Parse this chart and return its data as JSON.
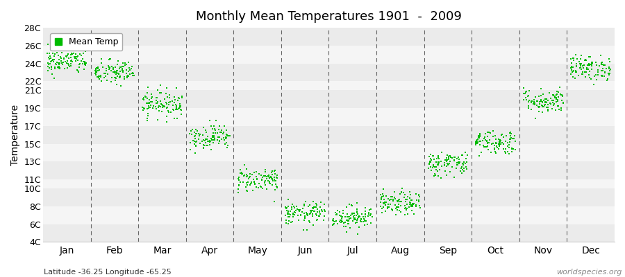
{
  "title": "Monthly Mean Temperatures 1901  -  2009",
  "ylabel": "Temperature",
  "xlabel_bottom": "Latitude -36.25 Longitude -65.25",
  "watermark": "worldspecies.org",
  "dot_color": "#00bb00",
  "bg_color": "#ffffff",
  "ylim": [
    4,
    28
  ],
  "yticks": [
    4,
    6,
    8,
    10,
    11,
    13,
    15,
    17,
    19,
    21,
    22,
    24,
    26,
    28
  ],
  "ytick_labels": [
    "4C",
    "6C",
    "8C",
    "10C",
    "11C",
    "13C",
    "15C",
    "17C",
    "19C",
    "21C",
    "22C",
    "24C",
    "26C",
    "28C"
  ],
  "months": [
    "Jan",
    "Feb",
    "Mar",
    "Apr",
    "May",
    "Jun",
    "Jul",
    "Aug",
    "Sep",
    "Oct",
    "Nov",
    "Dec"
  ],
  "month_means": [
    24.2,
    23.0,
    19.5,
    15.8,
    11.0,
    7.2,
    6.8,
    8.3,
    12.8,
    15.2,
    19.8,
    23.5
  ],
  "month_stds": [
    0.7,
    0.7,
    0.75,
    0.7,
    0.7,
    0.65,
    0.65,
    0.65,
    0.7,
    0.7,
    0.7,
    0.7
  ],
  "n_years": 109,
  "seed": 42,
  "band_colors": [
    "#ebebeb",
    "#f5f5f5"
  ]
}
